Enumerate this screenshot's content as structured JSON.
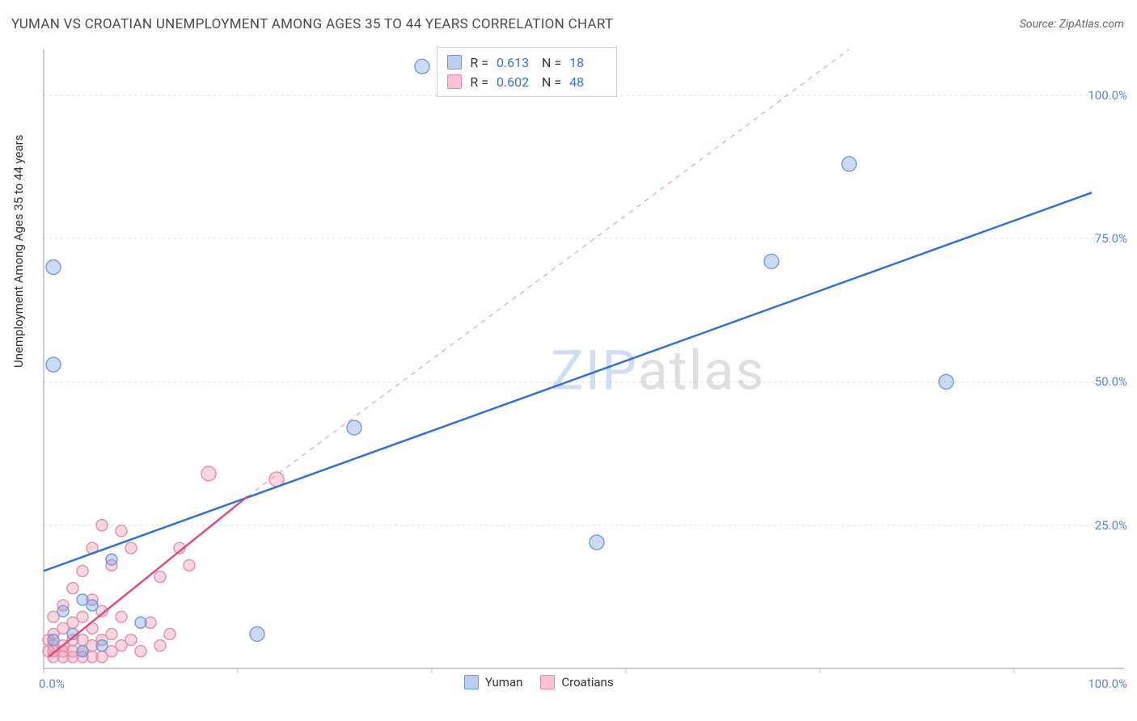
{
  "title": "YUMAN VS CROATIAN UNEMPLOYMENT AMONG AGES 35 TO 44 YEARS CORRELATION CHART",
  "source": "Source: ZipAtlas.com",
  "ylabel": "Unemployment Among Ages 35 to 44 years",
  "watermark": {
    "zip": "ZIP",
    "atlas": "atlas"
  },
  "chart": {
    "type": "scatter-correlation",
    "background_color": "#ffffff",
    "grid_color": "#dcdcdc",
    "axis_color": "#9a9a9a",
    "tick_color": "#bdbdbd",
    "xlim": [
      0,
      108
    ],
    "ylim": [
      0,
      108
    ],
    "xtick_positions": [
      0,
      20,
      40,
      60,
      80,
      100
    ],
    "ytick_positions": [
      25,
      50,
      75,
      100
    ],
    "xtick_labels": {
      "min": "0.0%",
      "max": "100.0%"
    },
    "ytick_labels": [
      "25.0%",
      "50.0%",
      "75.0%",
      "100.0%"
    ],
    "tick_label_color": "#5b87c7",
    "marker_radius": 9,
    "marker_small_radius": 7,
    "line_width_solid": 2.4,
    "line_width_dashed": 1.3,
    "series": [
      {
        "name": "Yuman",
        "color_fill": "rgba(120,160,220,0.38)",
        "color_stroke": "#6f9adb",
        "swatch_fill": "#b9cef0",
        "swatch_stroke": "#6f9adb",
        "R": "0.613",
        "N": "18",
        "trend_solid": {
          "x1": 0,
          "y1": 17,
          "x2": 108,
          "y2": 83,
          "color": "#2f6fd1"
        },
        "trend_dashed": {
          "x1": 21,
          "y1": 30,
          "x2": 83,
          "y2": 108,
          "color": "#e8a8b8"
        },
        "points": [
          {
            "x": 1,
            "y": 70
          },
          {
            "x": 1,
            "y": 53
          },
          {
            "x": 39,
            "y": 105
          },
          {
            "x": 32,
            "y": 42
          },
          {
            "x": 57,
            "y": 22
          },
          {
            "x": 75,
            "y": 71
          },
          {
            "x": 83,
            "y": 88
          },
          {
            "x": 93,
            "y": 50
          },
          {
            "x": 22,
            "y": 6
          },
          {
            "x": 10,
            "y": 8
          },
          {
            "x": 4,
            "y": 12
          },
          {
            "x": 5,
            "y": 11
          },
          {
            "x": 2,
            "y": 10
          },
          {
            "x": 7,
            "y": 19
          },
          {
            "x": 3,
            "y": 6
          },
          {
            "x": 6,
            "y": 4
          },
          {
            "x": 1,
            "y": 5
          },
          {
            "x": 4,
            "y": 3
          }
        ]
      },
      {
        "name": "Croatians",
        "color_fill": "rgba(240,150,175,0.38)",
        "color_stroke": "#e88aa6",
        "swatch_fill": "#f6c3d2",
        "swatch_stroke": "#e88aa6",
        "R": "0.602",
        "N": "48",
        "trend_solid": {
          "x1": 0.5,
          "y1": 2,
          "x2": 21,
          "y2": 30,
          "color": "#e04876"
        },
        "points": [
          {
            "x": 17,
            "y": 34
          },
          {
            "x": 24,
            "y": 33
          },
          {
            "x": 8,
            "y": 24
          },
          {
            "x": 6,
            "y": 25
          },
          {
            "x": 5,
            "y": 21
          },
          {
            "x": 9,
            "y": 21
          },
          {
            "x": 14,
            "y": 21
          },
          {
            "x": 15,
            "y": 18
          },
          {
            "x": 12,
            "y": 16
          },
          {
            "x": 7,
            "y": 18
          },
          {
            "x": 4,
            "y": 17
          },
          {
            "x": 3,
            "y": 14
          },
          {
            "x": 5,
            "y": 12
          },
          {
            "x": 2,
            "y": 11
          },
          {
            "x": 6,
            "y": 10
          },
          {
            "x": 8,
            "y": 9
          },
          {
            "x": 4,
            "y": 9
          },
          {
            "x": 11,
            "y": 8
          },
          {
            "x": 13,
            "y": 6
          },
          {
            "x": 3,
            "y": 8
          },
          {
            "x": 1,
            "y": 9
          },
          {
            "x": 2,
            "y": 7
          },
          {
            "x": 5,
            "y": 7
          },
          {
            "x": 7,
            "y": 6
          },
          {
            "x": 9,
            "y": 5
          },
          {
            "x": 1,
            "y": 6
          },
          {
            "x": 3,
            "y": 5
          },
          {
            "x": 4,
            "y": 5
          },
          {
            "x": 6,
            "y": 5
          },
          {
            "x": 2,
            "y": 4
          },
          {
            "x": 5,
            "y": 4
          },
          {
            "x": 1,
            "y": 4
          },
          {
            "x": 3,
            "y": 3
          },
          {
            "x": 4,
            "y": 3
          },
          {
            "x": 7,
            "y": 3
          },
          {
            "x": 2,
            "y": 3
          },
          {
            "x": 1,
            "y": 3
          },
          {
            "x": 5,
            "y": 2
          },
          {
            "x": 3,
            "y": 2
          },
          {
            "x": 6,
            "y": 2
          },
          {
            "x": 2,
            "y": 2
          },
          {
            "x": 4,
            "y": 2
          },
          {
            "x": 1,
            "y": 2
          },
          {
            "x": 8,
            "y": 4
          },
          {
            "x": 10,
            "y": 3
          },
          {
            "x": 12,
            "y": 4
          },
          {
            "x": 0.5,
            "y": 5
          },
          {
            "x": 0.5,
            "y": 3
          }
        ]
      }
    ],
    "legend_bottom": [
      {
        "label": "Yuman",
        "fill": "#b9cef0",
        "stroke": "#6f9adb"
      },
      {
        "label": "Croatians",
        "fill": "#f6c3d2",
        "stroke": "#e88aa6"
      }
    ]
  }
}
